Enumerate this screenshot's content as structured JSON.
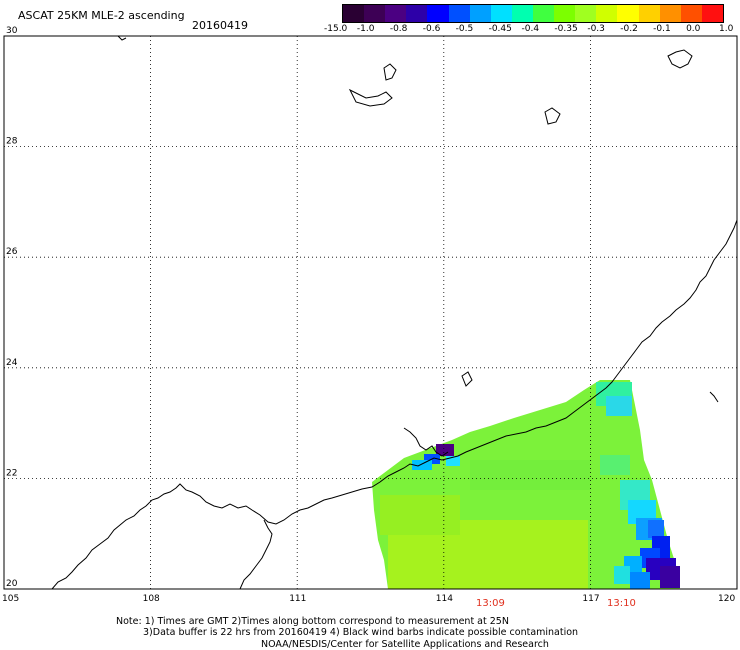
{
  "header": {
    "title": "ASCAT 25KM MLE-2 ascending",
    "date": "20160419"
  },
  "colorbar": {
    "labels": [
      "-15.0",
      "-1.0",
      "-0.8",
      "-0.6",
      "-0.5",
      "-0.45",
      "-0.4",
      "-0.35",
      "-0.3",
      "-0.2",
      "-0.1",
      "0.0",
      "1.0"
    ],
    "colors": [
      "#2a0033",
      "#3d0055",
      "#4b0082",
      "#2d00a8",
      "#0000ff",
      "#0050ff",
      "#00a0ff",
      "#00e0ff",
      "#00ffb0",
      "#40ff40",
      "#7cff00",
      "#a0ff20",
      "#d0ff00",
      "#ffff00",
      "#ffd000",
      "#ff9000",
      "#ff5000",
      "#ff1010"
    ]
  },
  "map": {
    "lat_labels": [
      "30",
      "28",
      "26",
      "24",
      "22",
      "20"
    ],
    "lon_labels": [
      "105",
      "108",
      "111",
      "114",
      "117",
      "120"
    ],
    "lat_range": [
      20,
      30
    ],
    "lon_range": [
      105,
      120
    ],
    "grid": "dotted",
    "time_labels": [
      "13:09",
      "13:10"
    ]
  },
  "footer": {
    "line1": "Note: 1) Times are GMT 2)Times along bottom correspond to measurement at 25N",
    "line2": "3)Data buffer is 22 hrs from 20160419 4) Black wind barbs indicate possible contamination",
    "line3": "NOAA/NESDIS/Center for Satellite Applications and Research"
  }
}
